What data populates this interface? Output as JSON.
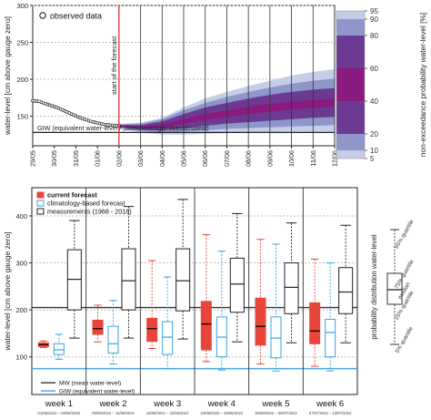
{
  "chart_data": [
    {
      "type": "area",
      "ylabel": "water-level [cm above gauge zero]",
      "ylim": [
        110,
        300
      ],
      "yticks": [
        150,
        200,
        250,
        300
      ],
      "x_ticks": [
        "29/05",
        "30/05",
        "31/05",
        "01/06",
        "02/06",
        "03/06",
        "04/06",
        "05/06",
        "06/06",
        "07/06",
        "08/06",
        "09/06",
        "10/06",
        "11/06",
        "12/06"
      ],
      "legend": {
        "label": "observed data",
        "placement": "top-left"
      },
      "annotations": {
        "forecast_start": "start of the forecast",
        "forecast_start_x": "02/06",
        "giw_label": "GIW (equivalent water-level / „Gleichwertiger Wasserstand)",
        "giw_value": 128
      },
      "observed": {
        "x_day": [
          0.0,
          0.3,
          0.6,
          0.9,
          1.2,
          1.5,
          1.8,
          2.1,
          2.4,
          2.7,
          3.0,
          3.3,
          3.6,
          4.0
        ],
        "y": [
          171,
          170,
          167,
          164,
          161,
          157,
          153,
          149,
          146,
          143,
          141,
          139,
          138,
          137
        ]
      },
      "forecast_days": [
        4.0,
        5.0,
        6.0,
        7.0,
        8.0,
        9.0,
        10.0,
        11.0,
        12.0,
        13.0,
        14.0
      ],
      "forecast_quantiles": {
        "q5": [
          133,
          128,
          125,
          125,
          126,
          127,
          128,
          128,
          129,
          129,
          129
        ],
        "q10": [
          134,
          130,
          128,
          129,
          131,
          133,
          134,
          135,
          136,
          137,
          138
        ],
        "q20": [
          135,
          132,
          131,
          134,
          137,
          140,
          142,
          144,
          146,
          148,
          149
        ],
        "q40": [
          136,
          134,
          135,
          140,
          145,
          149,
          153,
          156,
          159,
          161,
          163
        ],
        "q60": [
          137,
          136,
          139,
          146,
          153,
          158,
          163,
          167,
          170,
          172,
          174
        ],
        "q80": [
          138,
          138,
          143,
          153,
          162,
          168,
          174,
          179,
          183,
          186,
          188
        ],
        "q90": [
          139,
          140,
          146,
          158,
          168,
          176,
          183,
          189,
          194,
          198,
          201
        ],
        "q95": [
          140,
          141,
          148,
          162,
          174,
          183,
          191,
          198,
          205,
          210,
          214
        ]
      },
      "colorbar": {
        "label": "non-exceedance probability water-level [%]",
        "ticks": [
          "95",
          "90",
          "80",
          "60",
          "40",
          "20",
          "10",
          "5"
        ]
      }
    },
    {
      "type": "box",
      "ylabel": "water-level [cm above gauge zero]",
      "ylim": [
        20,
        460
      ],
      "yticks": [
        100,
        200,
        300,
        400
      ],
      "categories": [
        "week 1",
        "week 2",
        "week 3",
        "week 4",
        "week 5",
        "week 6"
      ],
      "date_ranges": [
        "01/06/2022 – 08/06/2022",
        "09/06/2022 – 15/06/2022",
        "16/06/2022 – 22/06/2022",
        "23/06/2022 – 29/06/2022",
        "30/06/2022 – 06/07/2022",
        "07/07/2022 – 13/07/2022"
      ],
      "legend_top": [
        "current forecast",
        "climatology-based forecast",
        "measurements (1968 - 2018)"
      ],
      "legend_bottom": [
        "MW (mean water-level)",
        "GIW (equivalent water-level)"
      ],
      "mw_value": 205,
      "giw_value": 75,
      "series": [
        {
          "name": "current forecast",
          "color": "#e8463a",
          "boxes": [
            {
              "min": 120,
              "q25": 122,
              "median": 126,
              "q75": 130,
              "max": 134
            },
            {
              "min": 132,
              "q25": 148,
              "median": 160,
              "q75": 178,
              "max": 210
            },
            {
              "min": 118,
              "q25": 133,
              "median": 160,
              "q75": 182,
              "max": 305
            },
            {
              "min": 90,
              "q25": 115,
              "median": 170,
              "q75": 218,
              "max": 360
            },
            {
              "min": 85,
              "q25": 125,
              "median": 165,
              "q75": 225,
              "max": 350
            },
            {
              "min": 80,
              "q25": 128,
              "median": 155,
              "q75": 215,
              "max": 308
            }
          ]
        },
        {
          "name": "climatology-based forecast",
          "color": "#3aa3e0",
          "boxes": [
            {
              "min": 95,
              "q25": 105,
              "median": 115,
              "q75": 128,
              "max": 148
            },
            {
              "min": 85,
              "q25": 108,
              "median": 128,
              "q75": 165,
              "max": 220
            },
            {
              "min": 75,
              "q25": 105,
              "median": 142,
              "q75": 175,
              "max": 270
            },
            {
              "min": 72,
              "q25": 100,
              "median": 142,
              "q75": 185,
              "max": 325
            },
            {
              "min": 70,
              "q25": 98,
              "median": 140,
              "q75": 185,
              "max": 340
            },
            {
              "min": 70,
              "q25": 100,
              "median": 152,
              "q75": 180,
              "max": 300
            }
          ]
        },
        {
          "name": "measurements (1968 - 2018)",
          "color": "#222222",
          "boxes": [
            {
              "min": 140,
              "q25": 200,
              "median": 265,
              "q75": 328,
              "max": 390
            },
            {
              "min": 140,
              "q25": 200,
              "median": 262,
              "q75": 330,
              "max": 420
            },
            {
              "min": 138,
              "q25": 198,
              "median": 262,
              "q75": 330,
              "max": 435
            },
            {
              "min": 132,
              "q25": 195,
              "median": 255,
              "q75": 310,
              "max": 405
            },
            {
              "min": 130,
              "q25": 192,
              "median": 248,
              "q75": 300,
              "max": 385
            },
            {
              "min": 130,
              "q25": 192,
              "median": 238,
              "q75": 290,
              "max": 380
            }
          ]
        }
      ]
    }
  ],
  "quantile_legend": {
    "title": "probability distribution water-level",
    "labels": [
      "95% quantile",
      "75% quantile",
      "median",
      "25% quantile",
      "5% quantile"
    ]
  },
  "colors": {
    "band_outer": "#c6cde8",
    "band_mid": "#8e96ca",
    "band_inner": "#6c3a92",
    "band_core": "#8b1a80",
    "forecast_line": "#e83030",
    "mw_line": "#4aa7dc"
  }
}
